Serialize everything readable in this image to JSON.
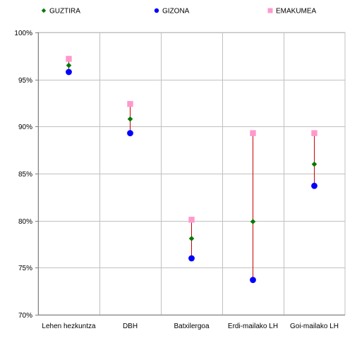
{
  "chart_data": {
    "type": "scatter",
    "title": "",
    "xlabel": "",
    "ylabel": "",
    "categories": [
      "Lehen hezkuntza",
      "DBH",
      "Batxilergoa",
      "Erdi-mailako LH",
      "Goi-mailako LH"
    ],
    "series": [
      {
        "name": "GUZTIRA",
        "marker": "diamond",
        "color": "#007a00",
        "values": [
          96.5,
          90.8,
          78.1,
          79.9,
          86.0
        ]
      },
      {
        "name": "GIZONA",
        "marker": "circle",
        "color": "#0000ff",
        "values": [
          95.8,
          89.3,
          76.0,
          73.7,
          83.7
        ]
      },
      {
        "name": "EMAKUMEA",
        "marker": "square",
        "color": "#ff99cc",
        "values": [
          97.2,
          92.4,
          80.1,
          89.3,
          89.3
        ]
      }
    ],
    "range_line_color": "#cc0000",
    "ylim": [
      70,
      100
    ],
    "yticks": [
      {
        "value": 70,
        "label": "70%"
      },
      {
        "value": 75,
        "label": "75%"
      },
      {
        "value": 80,
        "label": "80%"
      },
      {
        "value": 85,
        "label": "85%"
      },
      {
        "value": 90,
        "label": "90%"
      },
      {
        "value": 95,
        "label": "95%"
      },
      {
        "value": 100,
        "label": "100%"
      }
    ],
    "grid": true,
    "legend_position": "top"
  }
}
